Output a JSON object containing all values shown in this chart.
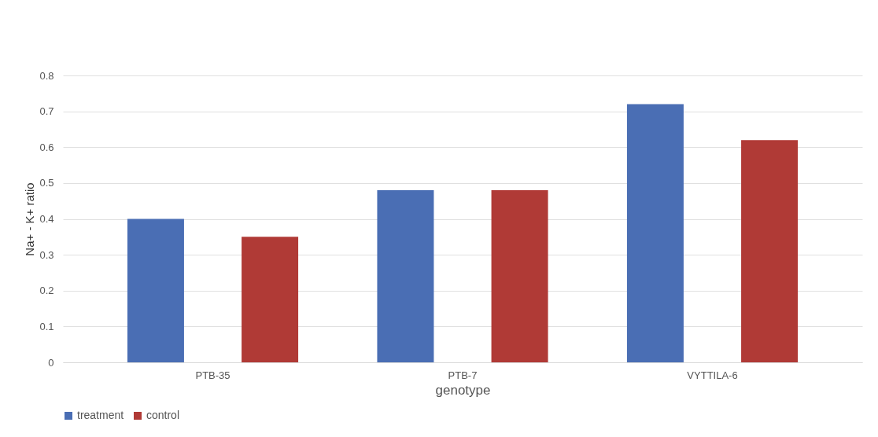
{
  "chart_data": {
    "type": "bar",
    "xlabel": "genotype",
    "ylabel": "Na+ - K+ ratio",
    "categories": [
      "PTB-35",
      "PTB-7",
      "VYTTILA-6"
    ],
    "series": [
      {
        "name": "treatment",
        "color": "#4a6eb4",
        "values": [
          0.4,
          0.48,
          0.72
        ]
      },
      {
        "name": "control",
        "color": "#b03a36",
        "values": [
          0.35,
          0.48,
          0.62
        ]
      }
    ],
    "ylim": [
      0,
      0.8
    ],
    "yticks": [
      0,
      0.1,
      0.2,
      0.3,
      0.4,
      0.5,
      0.6,
      0.7,
      0.8
    ],
    "grid": "y",
    "legend": "bottom"
  }
}
